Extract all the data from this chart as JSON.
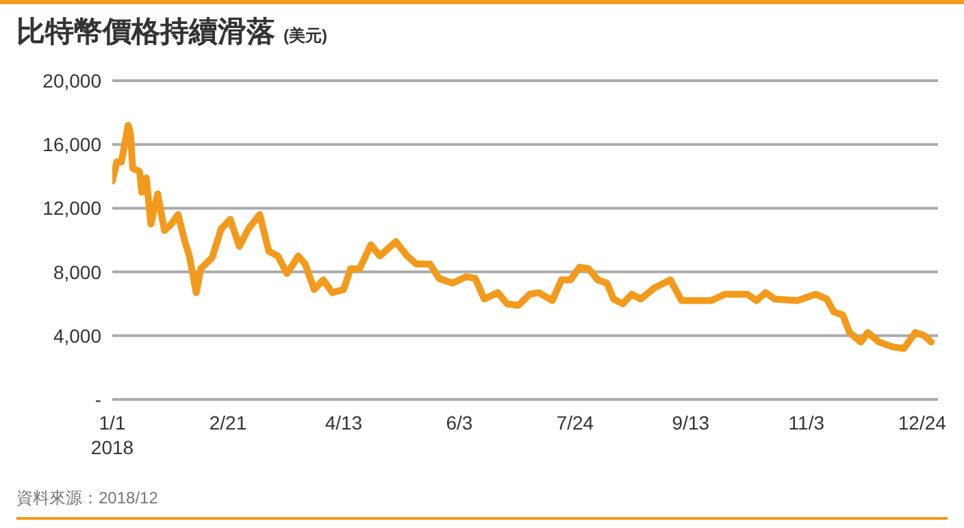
{
  "chart_data": {
    "type": "line",
    "title": "比特幣價格持續滑落",
    "ylabel": "(美元)",
    "x": [
      "2018-01-01",
      "2018-01-03",
      "2018-01-05",
      "2018-01-08",
      "2018-01-09",
      "2018-01-10",
      "2018-01-13",
      "2018-01-14",
      "2018-01-16",
      "2018-01-18",
      "2018-01-21",
      "2018-01-24",
      "2018-01-27",
      "2018-01-30",
      "2018-02-02",
      "2018-02-04",
      "2018-02-07",
      "2018-02-09",
      "2018-02-14",
      "2018-02-18",
      "2018-02-22",
      "2018-02-26",
      "2018-03-02",
      "2018-03-07",
      "2018-03-11",
      "2018-03-15",
      "2018-03-19",
      "2018-03-24",
      "2018-03-27",
      "2018-03-31",
      "2018-04-04",
      "2018-04-08",
      "2018-04-13",
      "2018-04-16",
      "2018-04-20",
      "2018-04-25",
      "2018-04-29",
      "2018-05-06",
      "2018-05-11",
      "2018-05-15",
      "2018-05-21",
      "2018-05-25",
      "2018-05-31",
      "2018-06-06",
      "2018-06-10",
      "2018-06-14",
      "2018-06-20",
      "2018-06-24",
      "2018-06-29",
      "2018-07-04",
      "2018-07-08",
      "2018-07-14",
      "2018-07-18",
      "2018-07-22",
      "2018-07-26",
      "2018-07-30",
      "2018-08-03",
      "2018-08-07",
      "2018-08-10",
      "2018-08-14",
      "2018-08-18",
      "2018-08-22",
      "2018-08-28",
      "2018-09-04",
      "2018-09-09",
      "2018-09-22",
      "2018-09-28",
      "2018-10-08",
      "2018-10-12",
      "2018-10-16",
      "2018-10-20",
      "2018-10-30",
      "2018-11-07",
      "2018-11-12",
      "2018-11-15",
      "2018-11-19",
      "2018-11-22",
      "2018-11-27",
      "2018-11-30",
      "2018-12-05",
      "2018-12-11",
      "2018-12-16",
      "2018-12-21",
      "2018-12-25",
      "2018-12-28"
    ],
    "series": [
      {
        "color": "#f39a1c",
        "values": [
          13700,
          14900,
          14900,
          17200,
          16700,
          14500,
          14300,
          13000,
          13900,
          11000,
          12900,
          10600,
          11000,
          11600,
          9900,
          9000,
          6700,
          8200,
          8900,
          10700,
          11300,
          9600,
          10700,
          11600,
          9300,
          9000,
          7900,
          9000,
          8500,
          6900,
          7500,
          6700,
          6900,
          8200,
          8200,
          9700,
          9000,
          9900,
          9000,
          8500,
          8500,
          7600,
          7300,
          7700,
          7600,
          6300,
          6700,
          6000,
          5900,
          6600,
          6700,
          6200,
          7500,
          7500,
          8300,
          8200,
          7500,
          7300,
          6300,
          6000,
          6600,
          6300,
          7000,
          7500,
          6200,
          6200,
          6600,
          6600,
          6200,
          6700,
          6300,
          6200,
          6600,
          6300,
          5500,
          5300,
          4200,
          3600,
          4200,
          3600,
          3300,
          3200,
          4200,
          4000,
          3600
        ]
      }
    ],
    "xlim": [
      "2018-01-01",
      "2018-12-31"
    ],
    "xticks": [
      {
        "value": "2018-01-01",
        "label": "1/1\n2018"
      },
      {
        "value": "2018-02-21",
        "label": "2/21"
      },
      {
        "value": "2018-04-13",
        "label": "4/13"
      },
      {
        "value": "2018-06-03",
        "label": "6/3"
      },
      {
        "value": "2018-07-24",
        "label": "7/24"
      },
      {
        "value": "2018-09-13",
        "label": "9/13"
      },
      {
        "value": "2018-11-03",
        "label": "11/3"
      },
      {
        "value": "2018-12-24",
        "label": "12/24"
      }
    ],
    "ylim": [
      0,
      20000
    ],
    "yticks": [
      {
        "value": 0,
        "label": "-"
      },
      {
        "value": 4000,
        "label": "4,000"
      },
      {
        "value": 8000,
        "label": "8,000"
      },
      {
        "value": 12000,
        "label": "12,000"
      },
      {
        "value": 16000,
        "label": "16,000"
      },
      {
        "value": 20000,
        "label": "20,000"
      }
    ],
    "grid": "y",
    "legend": false,
    "marker": "none",
    "line_style": "solid",
    "annotations": [
      "資料來源：2018/12"
    ]
  }
}
